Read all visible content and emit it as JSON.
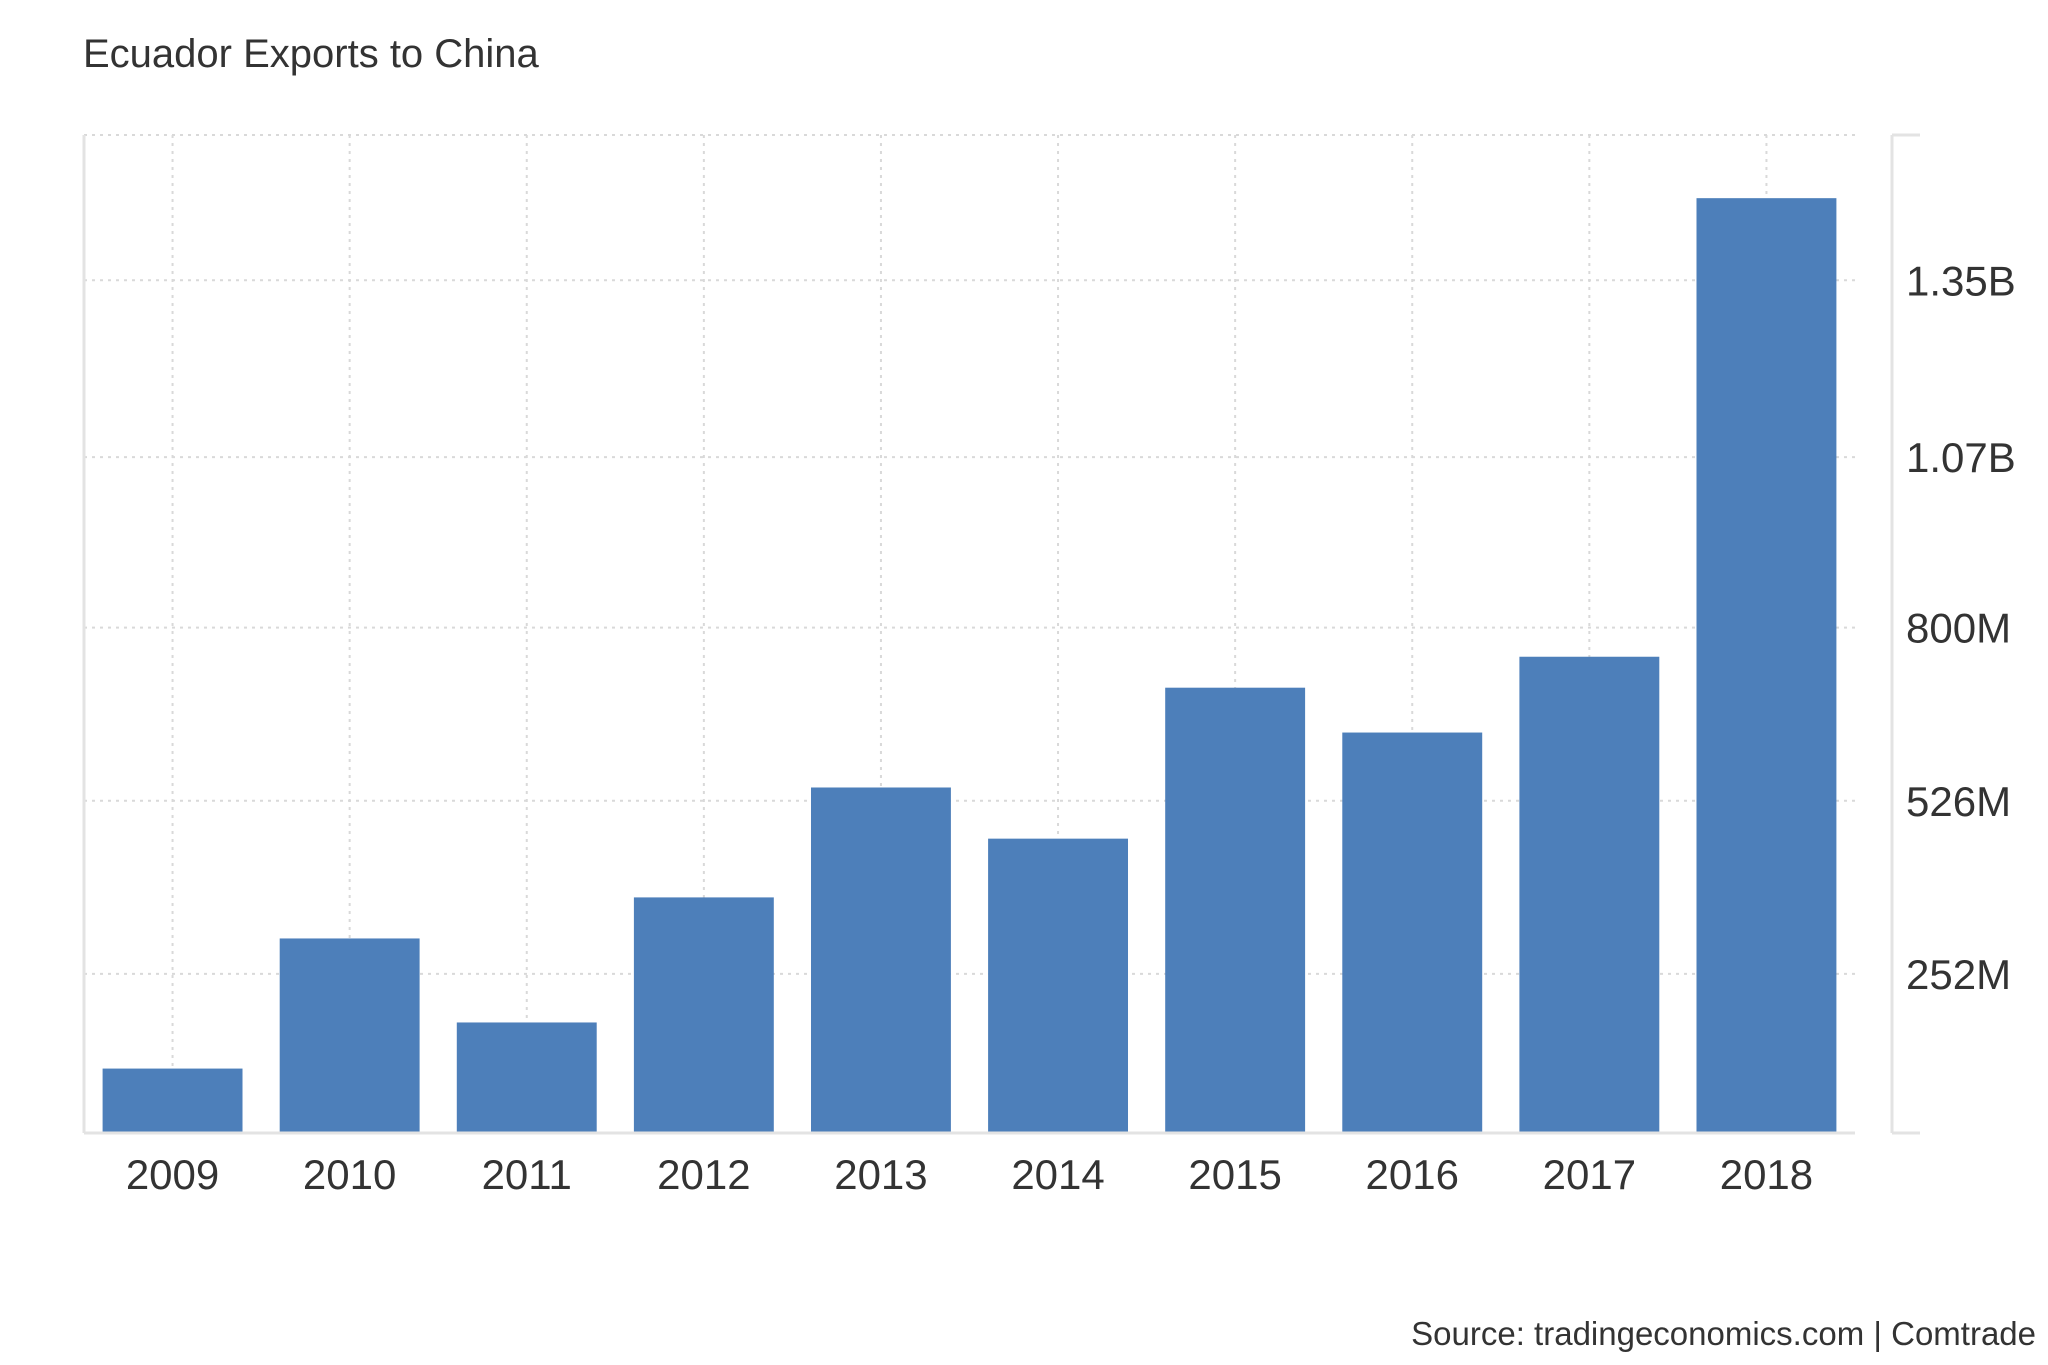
{
  "chart_data": {
    "type": "bar",
    "title": "Ecuador Exports to China",
    "xlabel": "",
    "ylabel": "",
    "categories": [
      "2009",
      "2010",
      "2011",
      "2012",
      "2013",
      "2014",
      "2015",
      "2016",
      "2017",
      "2018"
    ],
    "values": [
      102000000,
      308000000,
      175000000,
      373000000,
      547000000,
      466000000,
      705000000,
      634000000,
      754000000,
      1480000000
    ],
    "y_ticks": [
      {
        "value": 252000000,
        "label": "252M"
      },
      {
        "value": 526000000,
        "label": "526M"
      },
      {
        "value": 800000000,
        "label": "800M"
      },
      {
        "value": 1070000000,
        "label": "1.07B"
      },
      {
        "value": 1350000000,
        "label": "1.35B"
      }
    ],
    "ylim": [
      0,
      1580000000
    ],
    "y_axis_side": "right",
    "grid": true,
    "legend": "none",
    "bar_color": "#4d7fba",
    "source": "Source: tradingeconomics.com | Comtrade"
  }
}
